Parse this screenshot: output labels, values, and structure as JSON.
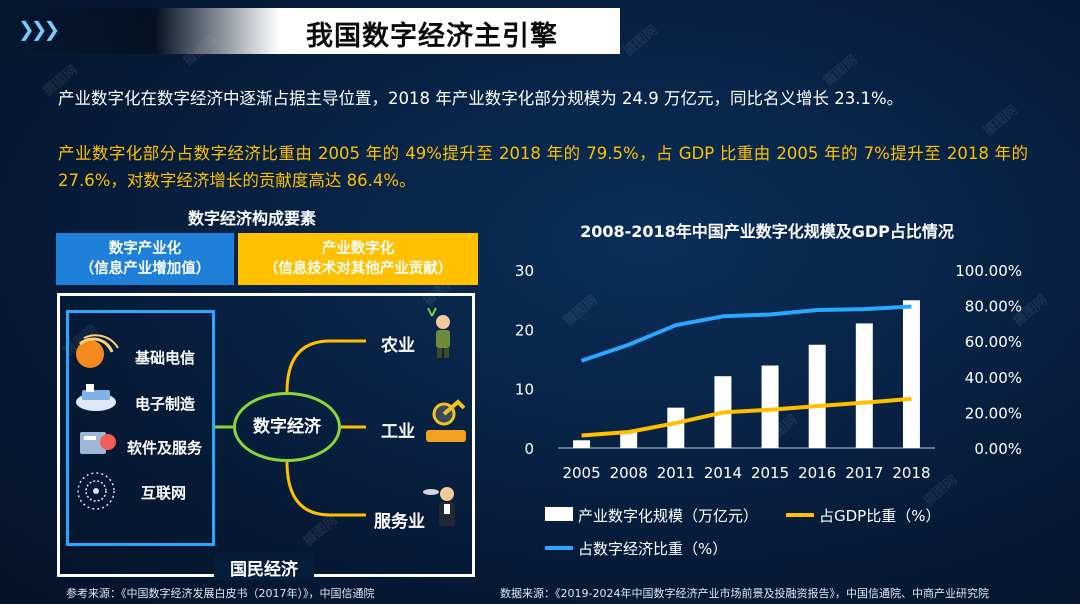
{
  "header": {
    "title": "我国数字经济主引擎"
  },
  "paragraphs": {
    "p1": "产业数字化在数字经济中逐渐占据主导位置，2018 年产业数字化部分规模为 24.9 万亿元，同比名义增长 23.1%。",
    "p2": "产业数字化部分占数字经济比重由 2005 年的 49%提升至 2018 年的 79.5%，占 GDP 比重由 2005 年的 7%提升至 2018 年的 27.6%，对数字经济增长的贡献度高达 86.4%。"
  },
  "diagram": {
    "title": "数字经济构成要素",
    "box_blue_line1": "数字产业化",
    "box_blue_line2": "（信息产业增加值）",
    "box_yellow_line1": "产业数字化",
    "box_yellow_line2": "（信息技术对其他产业贡献）",
    "left_items": [
      "基础电信",
      "电子制造",
      "软件及服务",
      "互联网"
    ],
    "center": "数字经济",
    "right_items": [
      "农业",
      "工业",
      "服务业"
    ],
    "outer_label": "国民经济"
  },
  "footer": {
    "left": "参考来源：《中国数字经济发展白皮书（2017年）》，中国信通院",
    "right": "数据来源：《2019-2024年中国数字经济产业市场前景及投融资报告》，中国信通院、中商产业研究院"
  },
  "watermark_text": "摄图网",
  "colors": {
    "bar": "#ffffff",
    "gdp_line": "#ffc000",
    "share_line": "#2aa7ff",
    "accent_blue": "#1e7fd8",
    "accent_yellow": "#ffc000"
  },
  "chart_data": {
    "type": "bar",
    "title": "2008-2018年中国产业数字化规模及GDP占比情况",
    "categories": [
      "2005",
      "2008",
      "2011",
      "2014",
      "2015",
      "2016",
      "2017",
      "2018"
    ],
    "y_left_ticks": [
      "0",
      "10",
      "20",
      "30"
    ],
    "y_left_range": [
      0,
      30
    ],
    "y_right_ticks": [
      "0.00%",
      "20.00%",
      "40.00%",
      "60.00%",
      "80.00%",
      "100.00%"
    ],
    "y_right_range": [
      0,
      100
    ],
    "series": [
      {
        "name": "产业数字化规模（万亿元）",
        "type": "bar",
        "axis": "left",
        "values": [
          1.3,
          2.7,
          6.8,
          12.1,
          13.9,
          17.4,
          21.0,
          24.9
        ]
      },
      {
        "name": "占GDP比重（%）",
        "type": "line",
        "axis": "right",
        "values": [
          7.0,
          9.0,
          14.0,
          20.0,
          21.5,
          23.5,
          25.5,
          27.6
        ]
      },
      {
        "name": "占数字经济比重（%）",
        "type": "line",
        "axis": "right",
        "values": [
          49.0,
          58.0,
          69.0,
          74.0,
          75.0,
          77.5,
          78.0,
          79.5
        ]
      }
    ],
    "grid": false,
    "legend": "bottom"
  }
}
